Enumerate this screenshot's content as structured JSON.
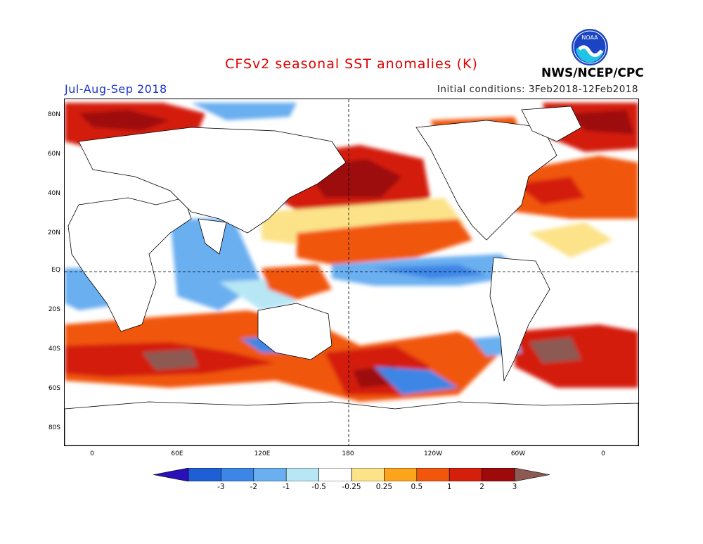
{
  "header": {
    "title": "CFSv2 seasonal SST anomalies (K)",
    "season": "Jul-Aug-Sep 2018",
    "initial_conditions": "Initial conditions: 3Feb2018-12Feb2018",
    "organization": "NWS/NCEP/CPC",
    "logo_text": "NOAA"
  },
  "map": {
    "lat_labels": [
      "80N",
      "60N",
      "40N",
      "20N",
      "EQ",
      "20S",
      "40S",
      "60S",
      "80S"
    ],
    "lon_labels": [
      "0",
      "60E",
      "120E",
      "180",
      "120W",
      "60W",
      "0"
    ],
    "reference_lines": [
      "EQ",
      "180"
    ]
  },
  "colorbar": {
    "tick_labels": [
      "-3",
      "-2",
      "-1",
      "-0.5",
      "-0.25",
      "0.25",
      "0.5",
      "1",
      "2",
      "3"
    ],
    "colors": [
      "#2a10b8",
      "#1f5fd6",
      "#3d86e6",
      "#6aaff0",
      "#b7e7f5",
      "#ffffff",
      "#fce389",
      "#fba41c",
      "#f1560c",
      "#d41f0c",
      "#9e0a0a",
      "#8c5a52"
    ]
  }
}
